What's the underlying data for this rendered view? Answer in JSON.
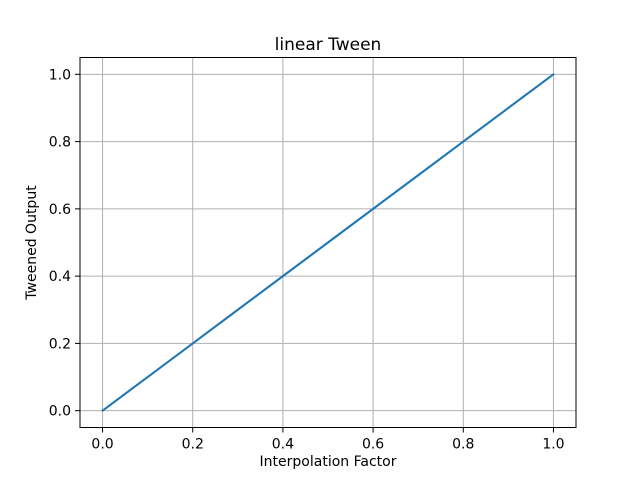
{
  "chart_data": {
    "type": "line",
    "title": "linear Tween",
    "xlabel": "Interpolation Factor",
    "ylabel": "Tweened Output",
    "x": [
      0.0,
      0.1,
      0.2,
      0.3,
      0.4,
      0.5,
      0.6,
      0.7,
      0.8,
      0.9,
      1.0
    ],
    "y": [
      0.0,
      0.1,
      0.2,
      0.3,
      0.4,
      0.5,
      0.6,
      0.7,
      0.8,
      0.9,
      1.0
    ],
    "xticks": [
      0.0,
      0.2,
      0.4,
      0.6,
      0.8,
      1.0
    ],
    "xticklabels": [
      "0.0",
      "0.2",
      "0.4",
      "0.6",
      "0.8",
      "1.0"
    ],
    "yticks": [
      0.0,
      0.2,
      0.4,
      0.6,
      0.8,
      1.0
    ],
    "yticklabels": [
      "0.0",
      "0.2",
      "0.4",
      "0.6",
      "0.8",
      "1.0"
    ],
    "xlim": [
      -0.05,
      1.05
    ],
    "ylim": [
      -0.05,
      1.05
    ],
    "grid": true,
    "legend_position": "none",
    "line_color": "#1f77b4",
    "grid_color": "#b0b0b0",
    "spine_color": "#000000",
    "background_color": "#ffffff"
  }
}
